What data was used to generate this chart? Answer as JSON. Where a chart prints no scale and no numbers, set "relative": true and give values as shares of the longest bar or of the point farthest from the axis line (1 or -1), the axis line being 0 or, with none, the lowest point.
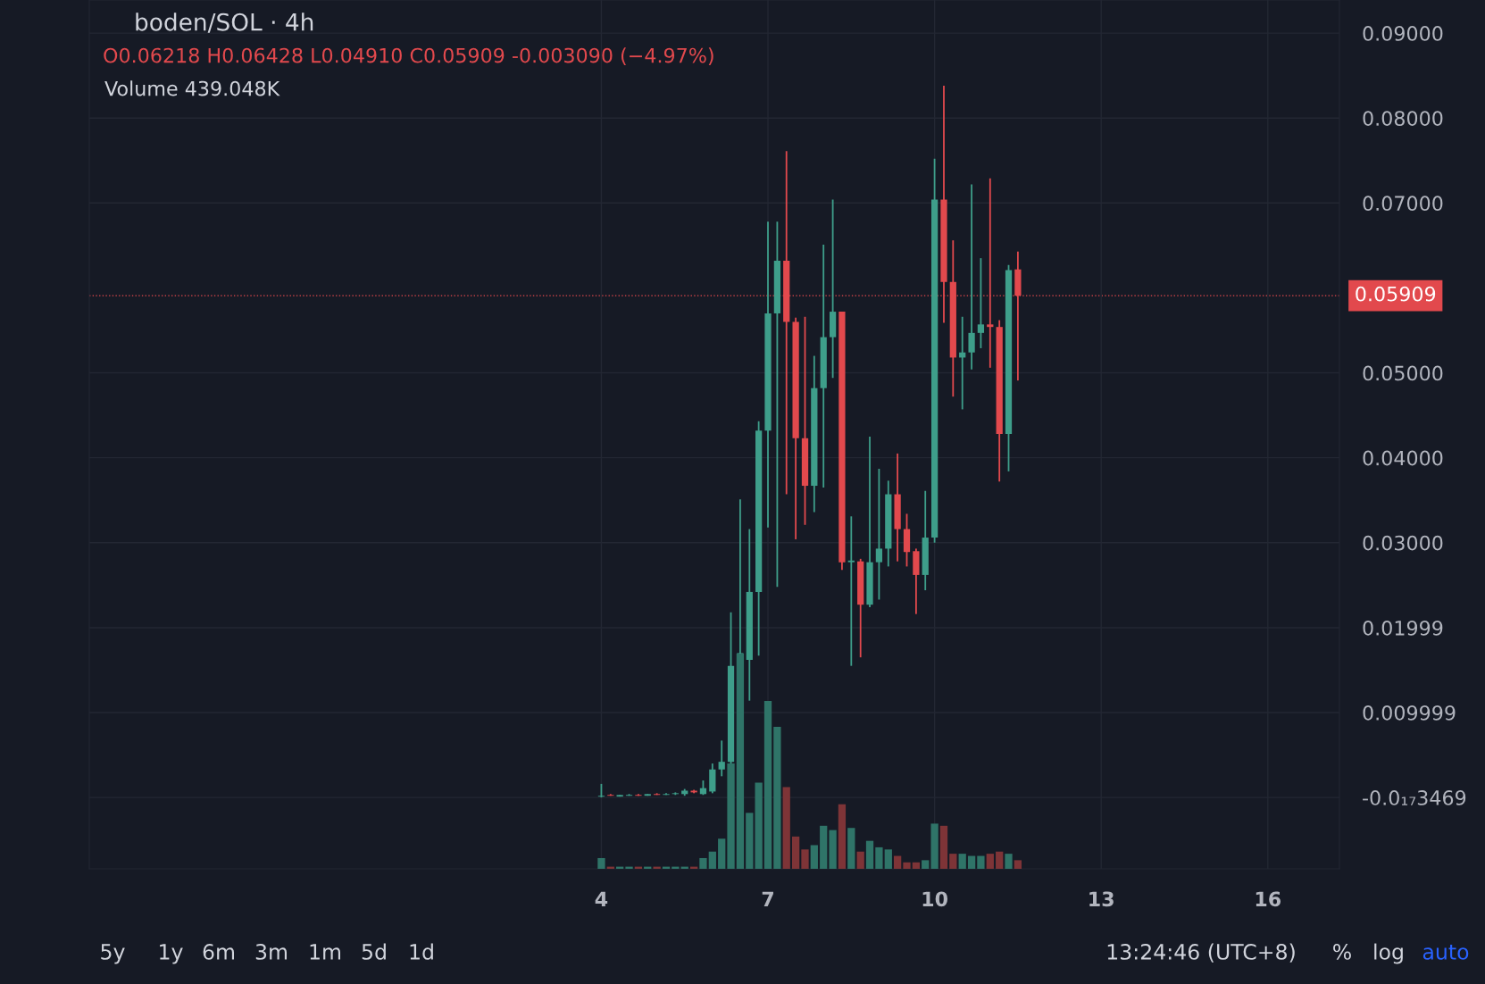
{
  "chart_data": [
    {
      "type": "candlestick",
      "title": "boden/SOL · 4h",
      "subtitle": "O0.06218 H0.06428 L0.04910 C0.05909 -0.003090 (−4.97%)",
      "annotations": [
        "Volume 439.048K",
        "5y",
        "1y",
        "6m",
        "3m",
        "1m",
        "5d",
        "1d",
        "13:24:46 (UTC+8)",
        "%",
        "log",
        "auto"
      ],
      "x": [
        4.0,
        4.167,
        4.333,
        4.5,
        4.667,
        4.833,
        5.0,
        5.167,
        5.333,
        5.5,
        5.667,
        5.833,
        6.0,
        6.167,
        6.333,
        6.5,
        6.667,
        6.833,
        7.0,
        7.167,
        7.333,
        7.5,
        7.667,
        7.833,
        8.0,
        8.167,
        8.333,
        8.5,
        8.667,
        8.833,
        9.0,
        9.167,
        9.333,
        9.5,
        9.667,
        9.833,
        10.0,
        10.167,
        10.333,
        10.5,
        10.667,
        10.833,
        11.0,
        11.167,
        11.333,
        11.5
      ],
      "ohlc": [
        [
          0.0001,
          0.0016,
          0.0,
          0.0002
        ],
        [
          0.0003,
          0.0004,
          0.0002,
          0.0002
        ],
        [
          0.0002,
          0.0003,
          0.0001,
          0.0002
        ],
        [
          0.0002,
          0.0004,
          0.0002,
          0.0003
        ],
        [
          0.0003,
          0.0004,
          0.0002,
          0.0002
        ],
        [
          0.0002,
          0.0004,
          0.0002,
          0.0004
        ],
        [
          0.0004,
          0.0005,
          0.0003,
          0.0003
        ],
        [
          0.0003,
          0.0005,
          0.0003,
          0.0004
        ],
        [
          0.0004,
          0.0006,
          0.0003,
          0.0005
        ],
        [
          0.0004,
          0.001,
          0.0002,
          0.0008
        ],
        [
          0.0008,
          0.0009,
          0.0005,
          0.0006
        ],
        [
          0.0004,
          0.002,
          0.0003,
          0.0011
        ],
        [
          0.0007,
          0.004,
          0.0005,
          0.0033
        ],
        [
          0.0033,
          0.0067,
          0.0025,
          0.0042
        ],
        [
          0.0042,
          0.0218,
          0.004,
          0.0155
        ],
        [
          0.0155,
          0.0351,
          0.0088,
          0.017
        ],
        [
          0.0162,
          0.0316,
          0.0114,
          0.0242
        ],
        [
          0.0242,
          0.0443,
          0.0167,
          0.0432
        ],
        [
          0.0432,
          0.0678,
          0.0318,
          0.057
        ],
        [
          0.057,
          0.0678,
          0.0248,
          0.0632
        ],
        [
          0.0632,
          0.0761,
          0.0357,
          0.056
        ],
        [
          0.056,
          0.0565,
          0.0304,
          0.0423
        ],
        [
          0.0423,
          0.0566,
          0.0321,
          0.0367
        ],
        [
          0.0367,
          0.052,
          0.0336,
          0.0482
        ],
        [
          0.0482,
          0.0651,
          0.0365,
          0.0542
        ],
        [
          0.0542,
          0.0704,
          0.0494,
          0.0572
        ],
        [
          0.0572,
          0.0572,
          0.0268,
          0.0277
        ],
        [
          0.0277,
          0.0331,
          0.0155,
          0.0279
        ],
        [
          0.0278,
          0.0281,
          0.0165,
          0.0227
        ],
        [
          0.0227,
          0.0425,
          0.0224,
          0.0277
        ],
        [
          0.0277,
          0.0387,
          0.0233,
          0.0293
        ],
        [
          0.0293,
          0.0373,
          0.0272,
          0.0357
        ],
        [
          0.0357,
          0.0405,
          0.0278,
          0.0316
        ],
        [
          0.0316,
          0.0334,
          0.0272,
          0.0289
        ],
        [
          0.029,
          0.0293,
          0.0216,
          0.0262
        ],
        [
          0.0262,
          0.0361,
          0.0244,
          0.0306
        ],
        [
          0.0306,
          0.0752,
          0.03,
          0.0704
        ],
        [
          0.0704,
          0.0838,
          0.0559,
          0.0607
        ],
        [
          0.0607,
          0.0656,
          0.0472,
          0.0518
        ],
        [
          0.0518,
          0.0566,
          0.0457,
          0.0524
        ],
        [
          0.0524,
          0.0722,
          0.0504,
          0.0547
        ],
        [
          0.0547,
          0.0635,
          0.0529,
          0.0557
        ],
        [
          0.0557,
          0.0729,
          0.0506,
          0.0554
        ],
        [
          0.0554,
          0.0562,
          0.0372,
          0.0428
        ],
        [
          0.0428,
          0.0627,
          0.0384,
          0.0621
        ],
        [
          0.06218,
          0.06428,
          0.0491,
          0.05909
        ]
      ],
      "colors": [
        "#3e9e8a",
        "#e2494d",
        "#3e9e8a",
        "#3e9e8a",
        "#e2494d",
        "#3e9e8a",
        "#e2494d",
        "#3e9e8a",
        "#3e9e8a",
        "#3e9e8a",
        "#e2494d",
        "#3e9e8a",
        "#3e9e8a",
        "#3e9e8a",
        "#3e9e8a",
        "#3e9e8a",
        "#3e9e8a",
        "#3e9e8a",
        "#3e9e8a",
        "#3e9e8a",
        "#e2494d",
        "#e2494d",
        "#e2494d",
        "#3e9e8a",
        "#3e9e8a",
        "#3e9e8a",
        "#e2494d",
        "#3e9e8a",
        "#e2494d",
        "#3e9e8a",
        "#3e9e8a",
        "#3e9e8a",
        "#e2494d",
        "#e2494d",
        "#e2494d",
        "#3e9e8a",
        "#3e9e8a",
        "#e2494d",
        "#e2494d",
        "#3e9e8a",
        "#3e9e8a",
        "#3e9e8a",
        "#e2494d",
        "#e2494d",
        "#3e9e8a",
        "#e2494d"
      ],
      "xlim": [
        -5.22,
        17.29
      ],
      "xticks": [
        4,
        7,
        10,
        13,
        16
      ],
      "ylim": [
        -0.0084,
        0.0939
      ],
      "yticks": [
        {
          "value": 0,
          "label": "-0.0₁₇3469"
        },
        0.009999,
        0.01999,
        {
          "value": 0.03,
          "label": "0.03000"
        },
        {
          "value": 0.04,
          "label": "0.04000"
        },
        {
          "value": 0.05,
          "label": "0.05000"
        },
        {
          "value": 0.07,
          "label": "0.07000"
        },
        {
          "value": 0.08,
          "label": "0.08000"
        },
        {
          "value": 0.09,
          "label": "0.09000"
        }
      ],
      "ref_lines": [
        {
          "axis": "y",
          "value": 0.05909,
          "label": "0.05909",
          "color": "#e2494d",
          "line_style": "dotted"
        }
      ],
      "grid": true
    },
    {
      "type": "bar",
      "relative": true,
      "tick_labels": false,
      "xlim": [
        -5.22,
        17.29
      ],
      "x": [
        4.0,
        4.167,
        4.333,
        4.5,
        4.667,
        4.833,
        5.0,
        5.167,
        5.333,
        5.5,
        5.667,
        5.833,
        6.0,
        6.167,
        6.333,
        6.5,
        6.667,
        6.833,
        7.0,
        7.167,
        7.333,
        7.5,
        7.667,
        7.833,
        8.0,
        8.167,
        8.333,
        8.5,
        8.667,
        8.833,
        9.0,
        9.167,
        9.333,
        9.5,
        9.667,
        9.833,
        10.0,
        10.167,
        10.333,
        10.5,
        10.667,
        10.833,
        11.0,
        11.167,
        11.333,
        11.5
      ],
      "values": [
        0.05,
        0.01,
        0.01,
        0.01,
        0.01,
        0.01,
        0.01,
        0.01,
        0.01,
        0.01,
        0.01,
        0.05,
        0.08,
        0.14,
        0.49,
        1,
        0.26,
        0.4,
        0.78,
        0.66,
        0.38,
        0.15,
        0.09,
        0.11,
        0.2,
        0.18,
        0.3,
        0.19,
        0.08,
        0.13,
        0.1,
        0.09,
        0.06,
        0.03,
        0.03,
        0.04,
        0.21,
        0.2,
        0.07,
        0.07,
        0.06,
        0.06,
        0.07,
        0.08,
        0.07,
        0.04
      ],
      "colors": [
        "#2f7468",
        "#7e3437",
        "#2f7468",
        "#2f7468",
        "#7e3437",
        "#2f7468",
        "#7e3437",
        "#2f7468",
        "#2f7468",
        "#2f7468",
        "#7e3437",
        "#2f7468",
        "#2f7468",
        "#2f7468",
        "#2f7468",
        "#2f7468",
        "#2f7468",
        "#2f7468",
        "#2f7468",
        "#2f7468",
        "#7e3437",
        "#7e3437",
        "#7e3437",
        "#2f7468",
        "#2f7468",
        "#2f7468",
        "#7e3437",
        "#2f7468",
        "#7e3437",
        "#2f7468",
        "#2f7468",
        "#2f7468",
        "#7e3437",
        "#7e3437",
        "#7e3437",
        "#2f7468",
        "#2f7468",
        "#7e3437",
        "#7e3437",
        "#2f7468",
        "#2f7468",
        "#2f7468",
        "#7e3437",
        "#7e3437",
        "#2f7468",
        "#7e3437"
      ]
    }
  ]
}
